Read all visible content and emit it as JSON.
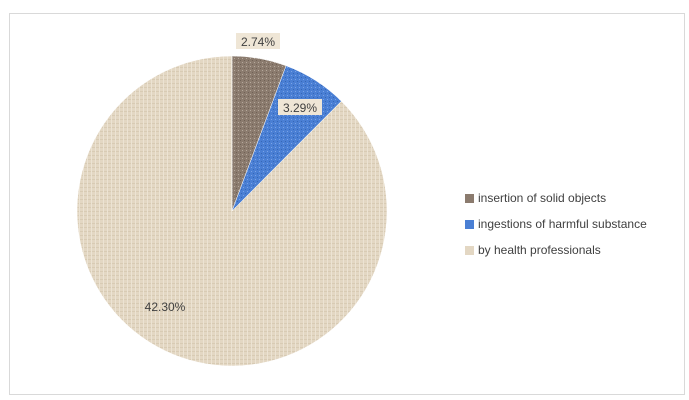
{
  "chart_data": {
    "type": "pie",
    "title": "",
    "start_angle_deg": 0,
    "direction": "clockwise",
    "slices": [
      {
        "name": "insertion of solid objects",
        "label": "2.74%",
        "value": 2.74,
        "color": "#8b7b6e",
        "pattern": "textured"
      },
      {
        "name": "ingestions of harmful substance",
        "label": "3.29%",
        "value": 3.29,
        "color": "#4a7fd4",
        "pattern": "textured"
      },
      {
        "name": "by health professionals",
        "label": "42.30%",
        "value": 42.3,
        "color": "#e3d7c3",
        "pattern": "linen"
      }
    ],
    "legend_position": "right"
  }
}
